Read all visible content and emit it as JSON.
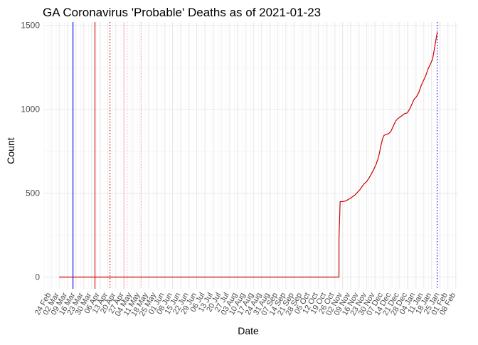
{
  "chart_data": {
    "type": "line",
    "title": "GA Coronavirus 'Probable' Deaths as of 2021-01-23",
    "xlabel": "Date",
    "ylabel": "Count",
    "x_axis_type": "date",
    "xlim": [
      "2020-02-18",
      "2021-02-10"
    ],
    "ylim": [
      -70,
      1520
    ],
    "y_ticks": [
      0,
      500,
      1000,
      1500
    ],
    "x_ticks": [
      {
        "date": "2020-02-24",
        "label": "24 Feb"
      },
      {
        "date": "2020-03-02",
        "label": "02 Mar"
      },
      {
        "date": "2020-03-09",
        "label": "09 Mar"
      },
      {
        "date": "2020-03-16",
        "label": "16 Mar"
      },
      {
        "date": "2020-03-23",
        "label": "23 Mar"
      },
      {
        "date": "2020-03-30",
        "label": "30 Mar"
      },
      {
        "date": "2020-04-06",
        "label": "06 Apr"
      },
      {
        "date": "2020-04-13",
        "label": "13 Apr"
      },
      {
        "date": "2020-04-20",
        "label": "20 Apr"
      },
      {
        "date": "2020-04-27",
        "label": "27 Apr"
      },
      {
        "date": "2020-05-04",
        "label": "04 May"
      },
      {
        "date": "2020-05-11",
        "label": "11 May"
      },
      {
        "date": "2020-05-18",
        "label": "18 May"
      },
      {
        "date": "2020-05-25",
        "label": "25 May"
      },
      {
        "date": "2020-06-01",
        "label": "01 Jun"
      },
      {
        "date": "2020-06-08",
        "label": "08 Jun"
      },
      {
        "date": "2020-06-15",
        "label": "15 Jun"
      },
      {
        "date": "2020-06-22",
        "label": "22 Jun"
      },
      {
        "date": "2020-06-29",
        "label": "29 Jun"
      },
      {
        "date": "2020-07-06",
        "label": "06 Jul"
      },
      {
        "date": "2020-07-13",
        "label": "13 Jul"
      },
      {
        "date": "2020-07-20",
        "label": "20 Jul"
      },
      {
        "date": "2020-07-27",
        "label": "27 Jul"
      },
      {
        "date": "2020-08-03",
        "label": "03 Aug"
      },
      {
        "date": "2020-08-10",
        "label": "10 Aug"
      },
      {
        "date": "2020-08-17",
        "label": "17 Aug"
      },
      {
        "date": "2020-08-24",
        "label": "24 Aug"
      },
      {
        "date": "2020-08-31",
        "label": "31 Aug"
      },
      {
        "date": "2020-09-07",
        "label": "07 Sep"
      },
      {
        "date": "2020-09-14",
        "label": "14 Sep"
      },
      {
        "date": "2020-09-21",
        "label": "21 Sep"
      },
      {
        "date": "2020-09-28",
        "label": "28 Sep"
      },
      {
        "date": "2020-10-05",
        "label": "05 Oct"
      },
      {
        "date": "2020-10-12",
        "label": "12 Oct"
      },
      {
        "date": "2020-10-19",
        "label": "19 Oct"
      },
      {
        "date": "2020-10-26",
        "label": "26 Oct"
      },
      {
        "date": "2020-11-02",
        "label": "02 Nov"
      },
      {
        "date": "2020-11-09",
        "label": "09 Nov"
      },
      {
        "date": "2020-11-16",
        "label": "16 Nov"
      },
      {
        "date": "2020-11-23",
        "label": "23 Nov"
      },
      {
        "date": "2020-11-30",
        "label": "30 Nov"
      },
      {
        "date": "2020-12-07",
        "label": "07 Dec"
      },
      {
        "date": "2020-12-14",
        "label": "14 Dec"
      },
      {
        "date": "2020-12-21",
        "label": "21 Dec"
      },
      {
        "date": "2020-12-28",
        "label": "28 Dec"
      },
      {
        "date": "2021-01-04",
        "label": "04 Jan"
      },
      {
        "date": "2021-01-11",
        "label": "11 Jan"
      },
      {
        "date": "2021-01-18",
        "label": "18 Jan"
      },
      {
        "date": "2021-01-25",
        "label": "25 Jan"
      },
      {
        "date": "2021-02-01",
        "label": "01 Feb"
      },
      {
        "date": "2021-02-08",
        "label": "08 Feb"
      }
    ],
    "grid": true,
    "legend": "none",
    "series": [
      {
        "color": "#cc0000",
        "points": [
          [
            "2020-03-02",
            0
          ],
          [
            "2020-10-30",
            0
          ],
          [
            "2020-10-30",
            230
          ],
          [
            "2020-10-31",
            450
          ],
          [
            "2020-11-03",
            450
          ],
          [
            "2020-11-05",
            455
          ],
          [
            "2020-11-07",
            462
          ],
          [
            "2020-11-09",
            470
          ],
          [
            "2020-11-11",
            480
          ],
          [
            "2020-11-13",
            490
          ],
          [
            "2020-11-15",
            505
          ],
          [
            "2020-11-17",
            520
          ],
          [
            "2020-11-19",
            540
          ],
          [
            "2020-11-21",
            558
          ],
          [
            "2020-11-23",
            570
          ],
          [
            "2020-11-25",
            590
          ],
          [
            "2020-11-27",
            615
          ],
          [
            "2020-11-29",
            640
          ],
          [
            "2020-12-01",
            670
          ],
          [
            "2020-12-02",
            690
          ],
          [
            "2020-12-03",
            710
          ],
          [
            "2020-12-04",
            740
          ],
          [
            "2020-12-05",
            775
          ],
          [
            "2020-12-06",
            805
          ],
          [
            "2020-12-07",
            830
          ],
          [
            "2020-12-08",
            845
          ],
          [
            "2020-12-10",
            850
          ],
          [
            "2020-12-12",
            855
          ],
          [
            "2020-12-14",
            870
          ],
          [
            "2020-12-16",
            900
          ],
          [
            "2020-12-18",
            930
          ],
          [
            "2020-12-20",
            945
          ],
          [
            "2020-12-22",
            955
          ],
          [
            "2020-12-24",
            965
          ],
          [
            "2020-12-26",
            975
          ],
          [
            "2020-12-28",
            978
          ],
          [
            "2020-12-30",
            1000
          ],
          [
            "2021-01-01",
            1030
          ],
          [
            "2021-01-03",
            1060
          ],
          [
            "2021-01-05",
            1075
          ],
          [
            "2021-01-07",
            1100
          ],
          [
            "2021-01-09",
            1140
          ],
          [
            "2021-01-11",
            1170
          ],
          [
            "2021-01-13",
            1200
          ],
          [
            "2021-01-15",
            1240
          ],
          [
            "2021-01-17",
            1268
          ],
          [
            "2021-01-19",
            1300
          ],
          [
            "2021-01-20",
            1340
          ],
          [
            "2021-01-21",
            1380
          ],
          [
            "2021-01-22",
            1420
          ],
          [
            "2021-01-23",
            1460
          ]
        ]
      }
    ],
    "vlines": [
      {
        "date": "2020-03-14",
        "color": "#0000ff",
        "style": "solid"
      },
      {
        "date": "2020-04-02",
        "color": "#cc0000",
        "style": "solid"
      },
      {
        "date": "2020-04-15",
        "color": "#cc0000",
        "style": "dotted"
      },
      {
        "date": "2020-04-27",
        "color": "#ffb6c1",
        "style": "solid"
      },
      {
        "date": "2020-04-30",
        "color": "#ffb6c1",
        "style": "dotted"
      },
      {
        "date": "2020-05-12",
        "color": "#ff9a9a",
        "style": "dotted"
      },
      {
        "date": "2021-01-23",
        "color": "#0000ff",
        "style": "dotted"
      }
    ]
  }
}
